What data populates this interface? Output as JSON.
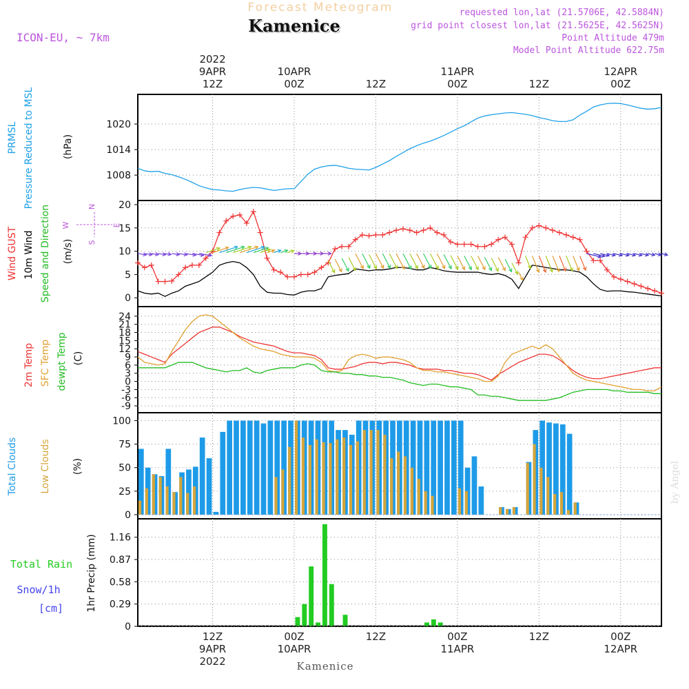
{
  "header": {
    "top_title": "Forecast Meteogram",
    "location": "Kamenice",
    "model": "ICON-EU, ~ 7km",
    "requested_point": "requested lon,lat (21.5706E, 42.5884N)",
    "grid_point": "grid point closest lon,lat (21.5625E, 42.5625N)",
    "point_altitude": "Point Altitude 479m",
    "model_altitude": "Model Point Altitude 622.75m"
  },
  "time_axis": {
    "start_hour_offset": 0,
    "end_hour_offset": 77,
    "top_labels": [
      {
        "hour": 11,
        "lines": [
          "2022",
          "9APR",
          "12Z"
        ]
      },
      {
        "hour": 23,
        "lines": [
          "10APR",
          "00Z"
        ]
      },
      {
        "hour": 35,
        "lines": [
          "12Z"
        ]
      },
      {
        "hour": 47,
        "lines": [
          "11APR",
          "00Z"
        ]
      },
      {
        "hour": 59,
        "lines": [
          "12Z"
        ]
      },
      {
        "hour": 71,
        "lines": [
          "12APR",
          "00Z"
        ]
      }
    ],
    "bottom_labels": [
      {
        "hour": 11,
        "lines": [
          "12Z",
          "9APR",
          "2022"
        ]
      },
      {
        "hour": 23,
        "lines": [
          "00Z",
          "10APR"
        ]
      },
      {
        "hour": 35,
        "lines": [
          "12Z"
        ]
      },
      {
        "hour": 47,
        "lines": [
          "00Z",
          "11APR"
        ]
      },
      {
        "hour": 59,
        "lines": [
          "12Z"
        ]
      },
      {
        "hour": 71,
        "lines": [
          "00Z",
          "12APR"
        ]
      }
    ],
    "footer_location": "Kamenice"
  },
  "credit": "by Angel",
  "colors": {
    "pressure": "#1ea0e8",
    "gust": "#ee3333",
    "wind": "#000000",
    "temp": "#ee3333",
    "sfc_temp": "#e0a030",
    "dewpt": "#22bb22",
    "total_clouds": "#1e9be8",
    "low_clouds": "#d4a53a",
    "rain": "#22cc22",
    "snow": "#4444ee",
    "label_purple": "#bb55dd"
  },
  "chart_data": [
    {
      "type": "line",
      "panel": "pressure",
      "side_labels": [
        "PRMSL",
        "Pressure Reduced to MSL"
      ],
      "unit_label": "(hPa)",
      "yticks": [
        1008,
        1014,
        1020
      ],
      "ylim": [
        1003,
        1026
      ],
      "series": [
        {
          "name": "PRMSL",
          "color": "#1ea0e8",
          "values": [
            1009.6,
            1009.0,
            1008.8,
            1008.9,
            1008.4,
            1008.1,
            1007.6,
            1007.0,
            1006.3,
            1005.5,
            1005.0,
            1004.6,
            1004.5,
            1004.3,
            1004.2,
            1004.6,
            1004.9,
            1005.1,
            1005.0,
            1004.7,
            1004.4,
            1004.6,
            1004.8,
            1004.8,
            1006.5,
            1008.2,
            1009.4,
            1009.9,
            1010.2,
            1010.3,
            1010.0,
            1009.6,
            1009.4,
            1009.3,
            1009.2,
            1009.8,
            1010.6,
            1011.4,
            1012.4,
            1013.3,
            1014.2,
            1014.9,
            1015.5,
            1016.0,
            1016.6,
            1017.3,
            1018.1,
            1018.9,
            1019.6,
            1020.5,
            1021.4,
            1021.9,
            1022.2,
            1022.4,
            1022.6,
            1022.7,
            1022.5,
            1022.3,
            1022.0,
            1021.5,
            1021.2,
            1020.8,
            1020.6,
            1020.6,
            1021.0,
            1022.1,
            1023.0,
            1024.0,
            1024.5,
            1024.8,
            1024.9,
            1024.8,
            1024.5,
            1024.1,
            1023.7,
            1023.5,
            1023.6,
            1023.9
          ]
        }
      ]
    },
    {
      "type": "line",
      "panel": "wind",
      "side_labels": [
        "Wind GUST",
        "10m Wind",
        "Speed and Direction"
      ],
      "unit_label": "(m/s)",
      "compass": {
        "n": "N",
        "s": "S",
        "w": "W",
        "e": "E"
      },
      "yticks": [
        0,
        5,
        10,
        15,
        20
      ],
      "ylim": [
        -1,
        20
      ],
      "series": [
        {
          "name": "Wind GUST",
          "color": "#ee3333",
          "values": [
            7.5,
            6.5,
            7.0,
            3.5,
            3.5,
            3.6,
            5.0,
            6.5,
            7.0,
            7.0,
            8.5,
            10.0,
            14.0,
            16.5,
            17.5,
            17.8,
            16.0,
            18.5,
            14.0,
            8.5,
            6.0,
            5.5,
            4.5,
            4.5,
            5.0,
            5.0,
            5.5,
            6.5,
            7.5,
            10.5,
            11.0,
            11.0,
            12.5,
            13.5,
            13.3,
            13.5,
            13.5,
            14.0,
            14.5,
            14.8,
            14.5,
            14.0,
            14.5,
            15.0,
            14.0,
            13.5,
            12.0,
            11.5,
            11.5,
            11.5,
            11.0,
            11.0,
            11.5,
            12.5,
            13.0,
            11.5,
            7.5,
            13.0,
            15.0,
            15.5,
            15.0,
            14.5,
            14.0,
            13.5,
            13.0,
            12.5,
            10.0,
            8.0,
            8.0,
            6.0,
            4.5,
            4.0,
            3.5,
            3.0,
            2.5,
            2.0,
            1.5,
            1.0
          ]
        },
        {
          "name": "10m Wind",
          "color": "#000000",
          "values": [
            1.5,
            1.0,
            0.8,
            1.0,
            0.3,
            1.0,
            1.5,
            2.5,
            3.0,
            3.5,
            4.5,
            5.5,
            7.0,
            7.5,
            7.8,
            7.5,
            6.5,
            5.0,
            2.5,
            1.2,
            1.0,
            1.0,
            0.7,
            0.6,
            1.2,
            1.5,
            1.5,
            2.0,
            4.5,
            4.8,
            5.0,
            5.2,
            6.2,
            6.0,
            5.8,
            6.0,
            6.0,
            6.2,
            6.5,
            6.5,
            6.3,
            6.0,
            6.0,
            6.5,
            6.2,
            5.8,
            5.6,
            5.5,
            5.5,
            5.5,
            5.5,
            5.2,
            5.0,
            5.2,
            4.8,
            4.0,
            2.0,
            4.5,
            7.0,
            6.8,
            6.5,
            6.3,
            6.0,
            6.0,
            5.8,
            5.5,
            4.5,
            3.0,
            1.8,
            1.4,
            1.5,
            1.5,
            1.3,
            1.2,
            1.0,
            0.8,
            0.6,
            0.4
          ]
        }
      ]
    },
    {
      "type": "line",
      "panel": "temperature",
      "side_labels": [
        "2m Temp",
        "SFC Temp",
        "dewpt Temp"
      ],
      "unit_label": "(C)",
      "yticks": [
        -9,
        -6,
        -3,
        0,
        3,
        6,
        9,
        12,
        15,
        18,
        21,
        24
      ],
      "ylim": [
        -10,
        26
      ],
      "series": [
        {
          "name": "2m Temp",
          "color": "#ee3333",
          "values": [
            11,
            10,
            9,
            8,
            7,
            10,
            12,
            14,
            16,
            18,
            19,
            20,
            20,
            19,
            18,
            16.5,
            15.5,
            14.5,
            14,
            13.5,
            13,
            12,
            11,
            10.5,
            10.5,
            10,
            9.5,
            8,
            5,
            4.5,
            4.5,
            5,
            5.5,
            6.5,
            7,
            7,
            6.5,
            7,
            7,
            6.5,
            6,
            5,
            4.5,
            4.5,
            4.5,
            4,
            4,
            3.5,
            3,
            3,
            2.5,
            1.5,
            0.5,
            2.5,
            4,
            5.5,
            7,
            8,
            9,
            10,
            10,
            9.5,
            8,
            6,
            4,
            2.5,
            1.5,
            1,
            1,
            1.5,
            2,
            2.5,
            3,
            3.5,
            4,
            4.5,
            5,
            5
          ]
        },
        {
          "name": "SFC Temp",
          "color": "#e0a030",
          "values": [
            9,
            7,
            6.5,
            6,
            6.5,
            11,
            15,
            19,
            22,
            24,
            24.5,
            24,
            22,
            20,
            18,
            16,
            14.5,
            13,
            12,
            11.5,
            11,
            10,
            9.5,
            9,
            9,
            9,
            8.5,
            7,
            4,
            3.5,
            4,
            8,
            9.5,
            10,
            9.5,
            8.5,
            9,
            9,
            8.5,
            8,
            7,
            5,
            4,
            4,
            3.5,
            3.5,
            3,
            2.5,
            2,
            1.5,
            1,
            0,
            0,
            2,
            7,
            10,
            11,
            12,
            13,
            12,
            13.5,
            12,
            9,
            6,
            3,
            1.5,
            0.5,
            0,
            -0.5,
            -1,
            -1.5,
            -2,
            -2.5,
            -3,
            -3,
            -3.5,
            -3.5,
            -2
          ]
        },
        {
          "name": "dewpt Temp",
          "color": "#22bb22",
          "values": [
            5,
            5,
            5,
            5,
            5,
            6,
            7,
            7,
            7,
            6,
            5,
            4.5,
            4,
            3.5,
            4,
            4,
            5,
            3.5,
            3,
            4,
            4.5,
            5,
            5,
            5,
            6,
            6.5,
            6,
            4,
            3.5,
            3.5,
            3,
            3,
            2.5,
            2.5,
            2,
            2,
            1.5,
            1.5,
            1,
            0.5,
            -0.5,
            -1,
            -1.5,
            -1,
            -1,
            -1.5,
            -2,
            -2,
            -2.5,
            -3,
            -5,
            -5,
            -5.5,
            -5.5,
            -6,
            -6.5,
            -7,
            -7,
            -7,
            -7,
            -7,
            -6.5,
            -6,
            -5,
            -4,
            -3.5,
            -3,
            -3,
            -3,
            -3,
            -3.5,
            -3.5,
            -4,
            -4,
            -4,
            -4,
            -4.5,
            -4.5
          ]
        }
      ]
    },
    {
      "type": "bar",
      "panel": "clouds",
      "side_labels": [
        "Total Clouds",
        "Low Clouds"
      ],
      "unit_label": "(%)",
      "yticks": [
        0,
        25,
        50,
        75,
        100
      ],
      "ylim": [
        0,
        104
      ],
      "series": [
        {
          "name": "Total Clouds",
          "color": "#1e9be8",
          "values": [
            70,
            50,
            43,
            41,
            70,
            24,
            45,
            48,
            51,
            82,
            60,
            3,
            88,
            100,
            100,
            100,
            100,
            100,
            97,
            100,
            100,
            100,
            100,
            100,
            100,
            100,
            100,
            100,
            100,
            90,
            90,
            85,
            100,
            100,
            100,
            100,
            100,
            100,
            100,
            100,
            100,
            100,
            100,
            100,
            100,
            100,
            100,
            100,
            50,
            62,
            30,
            0,
            0,
            8,
            6,
            8,
            0,
            56,
            90,
            100,
            98,
            97,
            96,
            86,
            13,
            0,
            0,
            0,
            0,
            0,
            0,
            0,
            0,
            0,
            0,
            0,
            0,
            0
          ]
        },
        {
          "name": "Low Clouds",
          "color": "#d4a53a",
          "values": [
            15,
            28,
            43,
            40,
            30,
            24,
            40,
            23,
            30,
            0,
            0,
            0,
            0,
            0,
            0,
            0,
            0,
            0,
            0,
            0,
            40,
            48,
            72,
            100,
            82,
            74,
            80,
            77,
            76,
            80,
            82,
            74,
            78,
            90,
            90,
            90,
            85,
            60,
            67,
            62,
            50,
            38,
            25,
            20,
            0,
            0,
            0,
            28,
            25,
            0,
            0,
            0,
            0,
            8,
            6,
            8,
            0,
            55,
            75,
            50,
            40,
            22,
            24,
            5,
            13,
            0,
            0,
            0,
            0,
            0,
            0,
            0,
            0,
            0,
            0,
            0,
            0,
            0
          ]
        }
      ]
    },
    {
      "type": "bar",
      "panel": "precip",
      "side_labels": [
        "Total  Rain",
        "Snow/1h",
        "[cm]"
      ],
      "unit_label": "1hr Precip (mm)",
      "yticks": [
        0,
        0.29,
        0.58,
        0.87,
        1.16
      ],
      "ylim": [
        0,
        1.4
      ],
      "series": [
        {
          "name": "Total  Rain",
          "color": "#22cc22",
          "values": [
            0,
            0,
            0,
            0,
            0,
            0,
            0,
            0,
            0,
            0,
            0,
            0,
            0,
            0,
            0,
            0,
            0,
            0,
            0,
            0,
            0,
            0,
            0,
            0.12,
            0.29,
            0.78,
            0.05,
            1.33,
            0.55,
            0,
            0.15,
            0,
            0,
            0,
            0,
            0,
            0,
            0,
            0,
            0,
            0,
            0,
            0.05,
            0.09,
            0.05,
            0,
            0,
            0,
            0,
            0,
            0,
            0,
            0,
            0,
            0,
            0,
            0,
            0,
            0,
            0,
            0,
            0,
            0,
            0,
            0,
            0,
            0,
            0,
            0,
            0,
            0,
            0,
            0,
            0,
            0,
            0,
            0,
            0
          ]
        },
        {
          "name": "Snow/1h",
          "color": "#4444ee",
          "values": [
            0,
            0,
            0,
            0,
            0,
            0,
            0,
            0,
            0,
            0,
            0,
            0,
            0,
            0,
            0,
            0,
            0,
            0,
            0,
            0,
            0,
            0,
            0,
            0,
            0,
            0,
            0,
            0,
            0,
            0,
            0,
            0,
            0,
            0,
            0,
            0,
            0,
            0,
            0,
            0,
            0,
            0,
            0,
            0,
            0,
            0,
            0,
            0,
            0,
            0,
            0,
            0,
            0,
            0,
            0,
            0,
            0,
            0,
            0,
            0,
            0,
            0,
            0,
            0,
            0,
            0,
            0,
            0,
            0,
            0,
            0,
            0,
            0,
            0,
            0,
            0,
            0,
            0
          ]
        }
      ]
    }
  ]
}
